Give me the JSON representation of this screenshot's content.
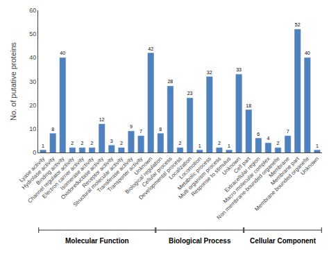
{
  "chart_data": {
    "type": "bar",
    "categories": [
      "Lyase activity",
      "Hydrolase activity",
      "Binding activity",
      "Channel regulator activity",
      "Electron carrier activity",
      "Isomerase activity",
      "Oxidoreductase activity",
      "Receptor activity",
      "Structural molecular activity",
      "Transferase activity",
      "Transporter activity",
      "Unknown",
      "Biological regulation",
      "Cellular process",
      "Developmental process",
      "Localization",
      "Locomotion",
      "Metabolic process",
      "Multi organism process",
      "Response to stimulus",
      "Unknown",
      "Cell part",
      "Extracellular region",
      "Macro molecular complex",
      "Non membrane-bounded organelle",
      "Membrane",
      "Membrane part",
      "Membrane bounded organelle",
      "Unknown"
    ],
    "values": [
      1,
      8,
      40,
      2,
      2,
      2,
      12,
      3,
      2,
      9,
      7,
      42,
      8,
      28,
      2,
      23,
      1,
      32,
      2,
      1,
      33,
      18,
      6,
      4,
      2,
      7,
      52,
      40,
      1
    ],
    "groups": [
      {
        "label": "Molecular Function",
        "start": 0,
        "end": 11
      },
      {
        "label": "Biological Process",
        "start": 12,
        "end": 20
      },
      {
        "label": "Cellular Component",
        "start": 21,
        "end": 28
      }
    ],
    "color": "#4f81bd",
    "ylabel": "No. of putative proteins",
    "ylim": [
      0,
      60
    ],
    "yticks": [
      0,
      10,
      20,
      30,
      40,
      50,
      60
    ],
    "data_labels": true,
    "grid": false
  }
}
